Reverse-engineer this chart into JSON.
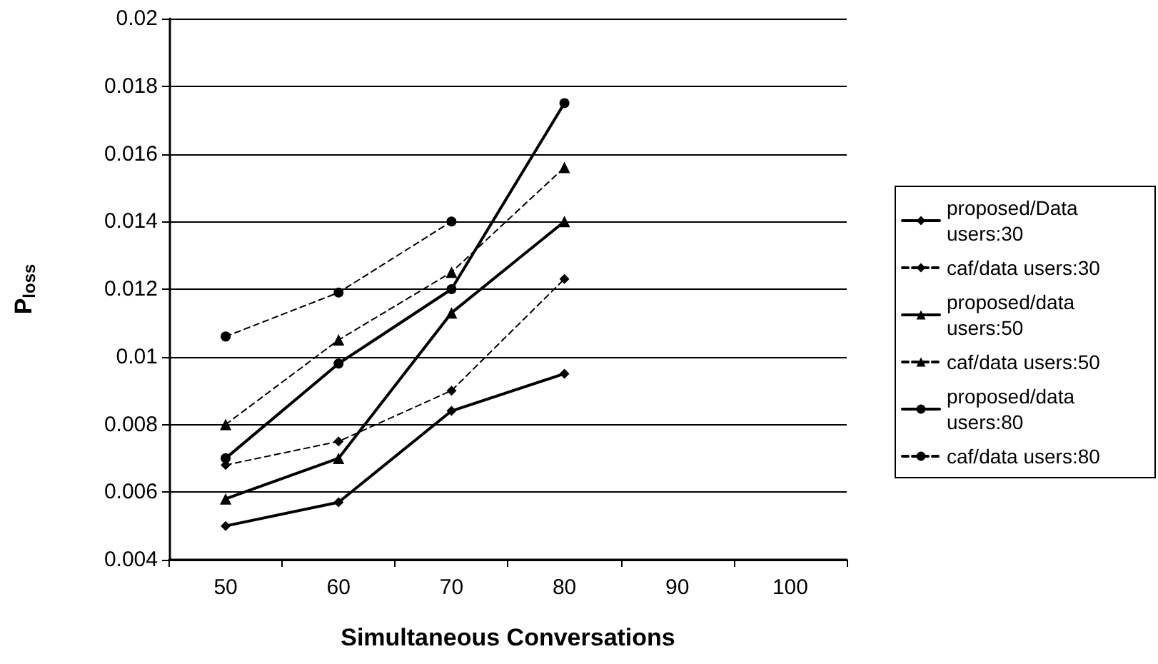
{
  "chart_data": {
    "type": "line",
    "xlabel": "Simultaneous Conversations",
    "ylabel": "P$_{loss}$",
    "categories": [
      "50",
      "60",
      "70",
      "80",
      "90",
      "100"
    ],
    "series": [
      {
        "name": "proposed/Data users:30",
        "color": "#000000",
        "marker": "diamond",
        "line_style": "solid",
        "values": [
          0.005,
          0.0057,
          0.0084,
          0.0095,
          null,
          null
        ]
      },
      {
        "name": "caf/data users:30",
        "color": "#000000",
        "marker": "diamond",
        "line_style": "dashed",
        "values": [
          0.0068,
          0.0075,
          0.009,
          0.0123,
          null,
          null
        ]
      },
      {
        "name": "proposed/data users:50",
        "color": "#000000",
        "marker": "triangle",
        "line_style": "solid",
        "values": [
          0.0058,
          0.007,
          0.0113,
          0.014,
          null,
          null
        ]
      },
      {
        "name": "caf/data users:50",
        "color": "#000000",
        "marker": "triangle",
        "line_style": "dashed",
        "values": [
          0.008,
          0.0105,
          0.0125,
          0.0156,
          null,
          null
        ]
      },
      {
        "name": "proposed/data users:80",
        "color": "#000000",
        "marker": "circle",
        "line_style": "solid",
        "values": [
          0.007,
          0.0098,
          0.012,
          0.0175,
          null,
          null
        ]
      },
      {
        "name": "caf/data users:80",
        "color": "#000000",
        "marker": "circle",
        "line_style": "dashed",
        "values": [
          0.0106,
          0.0119,
          0.014,
          null,
          null,
          null
        ]
      }
    ],
    "ylim": [
      0.004,
      0.02
    ],
    "yticks": [
      0.004,
      0.006,
      0.008,
      0.01,
      0.012,
      0.014,
      0.016,
      0.018,
      0.02
    ],
    "grid": "y",
    "legend": "right"
  }
}
